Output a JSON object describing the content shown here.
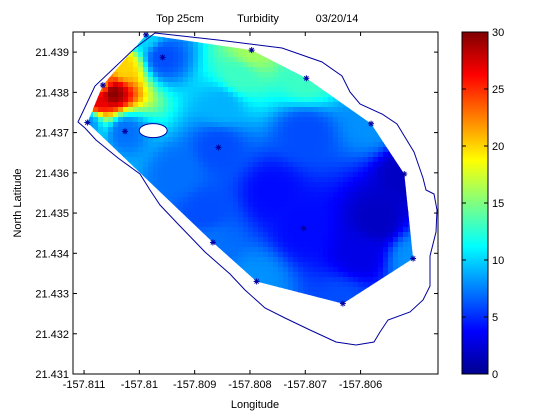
{
  "chart_data": {
    "type": "heatmap",
    "title_parts": [
      "Top 25cm",
      "Turbidity",
      "03/20/14"
    ],
    "xlabel": "Longitude",
    "ylabel": "North Latitude",
    "xlim": [
      -157.8112,
      -157.8046
    ],
    "ylim": [
      21.431,
      21.4395
    ],
    "xticks": [
      -157.811,
      -157.81,
      -157.809,
      -157.808,
      -157.807,
      -157.806
    ],
    "xtick_labels": [
      "-157.811",
      "-157.81",
      "-157.809",
      "-157.808",
      "-157.807",
      "-157.806"
    ],
    "yticks": [
      21.431,
      21.432,
      21.433,
      21.434,
      21.435,
      21.436,
      21.437,
      21.438,
      21.439
    ],
    "ytick_labels": [
      "21.431",
      "21.432",
      "21.433",
      "21.434",
      "21.435",
      "21.436",
      "21.437",
      "21.438",
      "21.439"
    ],
    "colorbar": {
      "range": [
        0,
        30
      ],
      "ticks": [
        0,
        5,
        10,
        15,
        20,
        25,
        30
      ],
      "tick_labels": [
        "0",
        "5",
        "10",
        "15",
        "20",
        "25",
        "30"
      ],
      "colormap": "jet"
    },
    "grid": false,
    "shoreline_color": "#0000a0",
    "sample_marker_color": "#0000a0",
    "sample_marker": "*",
    "sample_points": [
      {
        "x": -157.81094,
        "y": 21.43725,
        "value": 8
      },
      {
        "x": -157.81066,
        "y": 21.43818,
        "value": 22
      },
      {
        "x": -157.81026,
        "y": 21.43703,
        "value": 7
      },
      {
        "x": -157.80988,
        "y": 21.43943,
        "value": 10
      },
      {
        "x": -157.80958,
        "y": 21.43887,
        "value": 6
      },
      {
        "x": -157.80857,
        "y": 21.43663,
        "value": 6
      },
      {
        "x": -157.80797,
        "y": 21.43905,
        "value": 16
      },
      {
        "x": -157.80698,
        "y": 21.43835,
        "value": 13
      },
      {
        "x": -157.80581,
        "y": 21.43722,
        "value": 8
      },
      {
        "x": -157.80521,
        "y": 21.43597,
        "value": 2
      },
      {
        "x": -157.80505,
        "y": 21.43387,
        "value": 8
      },
      {
        "x": -157.80632,
        "y": 21.43275,
        "value": 6
      },
      {
        "x": -157.80703,
        "y": 21.43462,
        "value": 4
      },
      {
        "x": -157.80788,
        "y": 21.4333,
        "value": 8
      },
      {
        "x": -157.80867,
        "y": 21.43427,
        "value": 7
      }
    ],
    "interpolation_anchors": [
      {
        "x": -157.8105,
        "y": 21.438,
        "value": 30
      },
      {
        "x": -157.81075,
        "y": 21.4378,
        "value": 27
      },
      {
        "x": -157.8103,
        "y": 21.4386,
        "value": 20
      },
      {
        "x": -157.8082,
        "y": 21.4384,
        "value": 13
      },
      {
        "x": -157.8085,
        "y": 21.4377,
        "value": 9
      },
      {
        "x": -157.807,
        "y": 21.437,
        "value": 6
      },
      {
        "x": -157.8076,
        "y": 21.4355,
        "value": 4
      },
      {
        "x": -157.8057,
        "y": 21.4348,
        "value": 2
      },
      {
        "x": -157.806,
        "y": 21.434,
        "value": 3
      },
      {
        "x": -157.8093,
        "y": 21.436,
        "value": 7
      },
      {
        "x": -157.8088,
        "y": 21.435,
        "value": 6
      }
    ],
    "hole_center": {
      "x": -157.80975,
      "y": 21.43705
    }
  }
}
